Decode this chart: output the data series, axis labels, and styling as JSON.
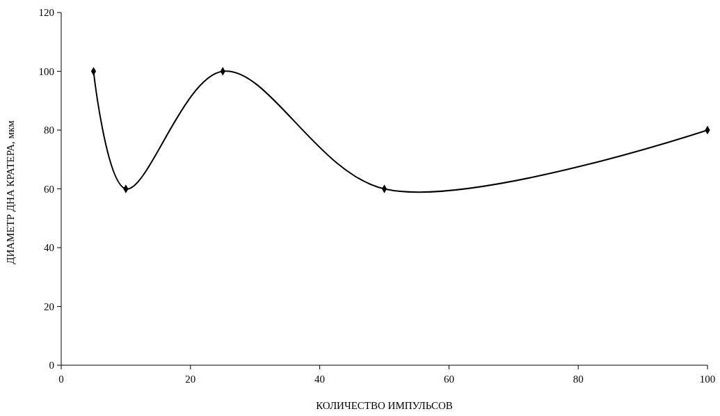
{
  "chart_data": {
    "type": "line",
    "xlabel": "КОЛИЧЕСТВО ИМПУЛЬСОВ",
    "ylabel": "ДИАМЕТР ДНА КРАТЕРА, мкм",
    "x": [
      5,
      10,
      25,
      50,
      100
    ],
    "series": [
      {
        "color": "#000000",
        "values": [
          100,
          60,
          100,
          60,
          80
        ]
      }
    ],
    "xlim": [
      0,
      100
    ],
    "xticks": [
      0,
      20,
      40,
      60,
      80,
      100
    ],
    "ylim": [
      0,
      120
    ],
    "yticks": [
      0,
      20,
      40,
      60,
      80,
      100,
      120
    ],
    "grid": false,
    "marker": "diamond",
    "line_style": "solid"
  }
}
